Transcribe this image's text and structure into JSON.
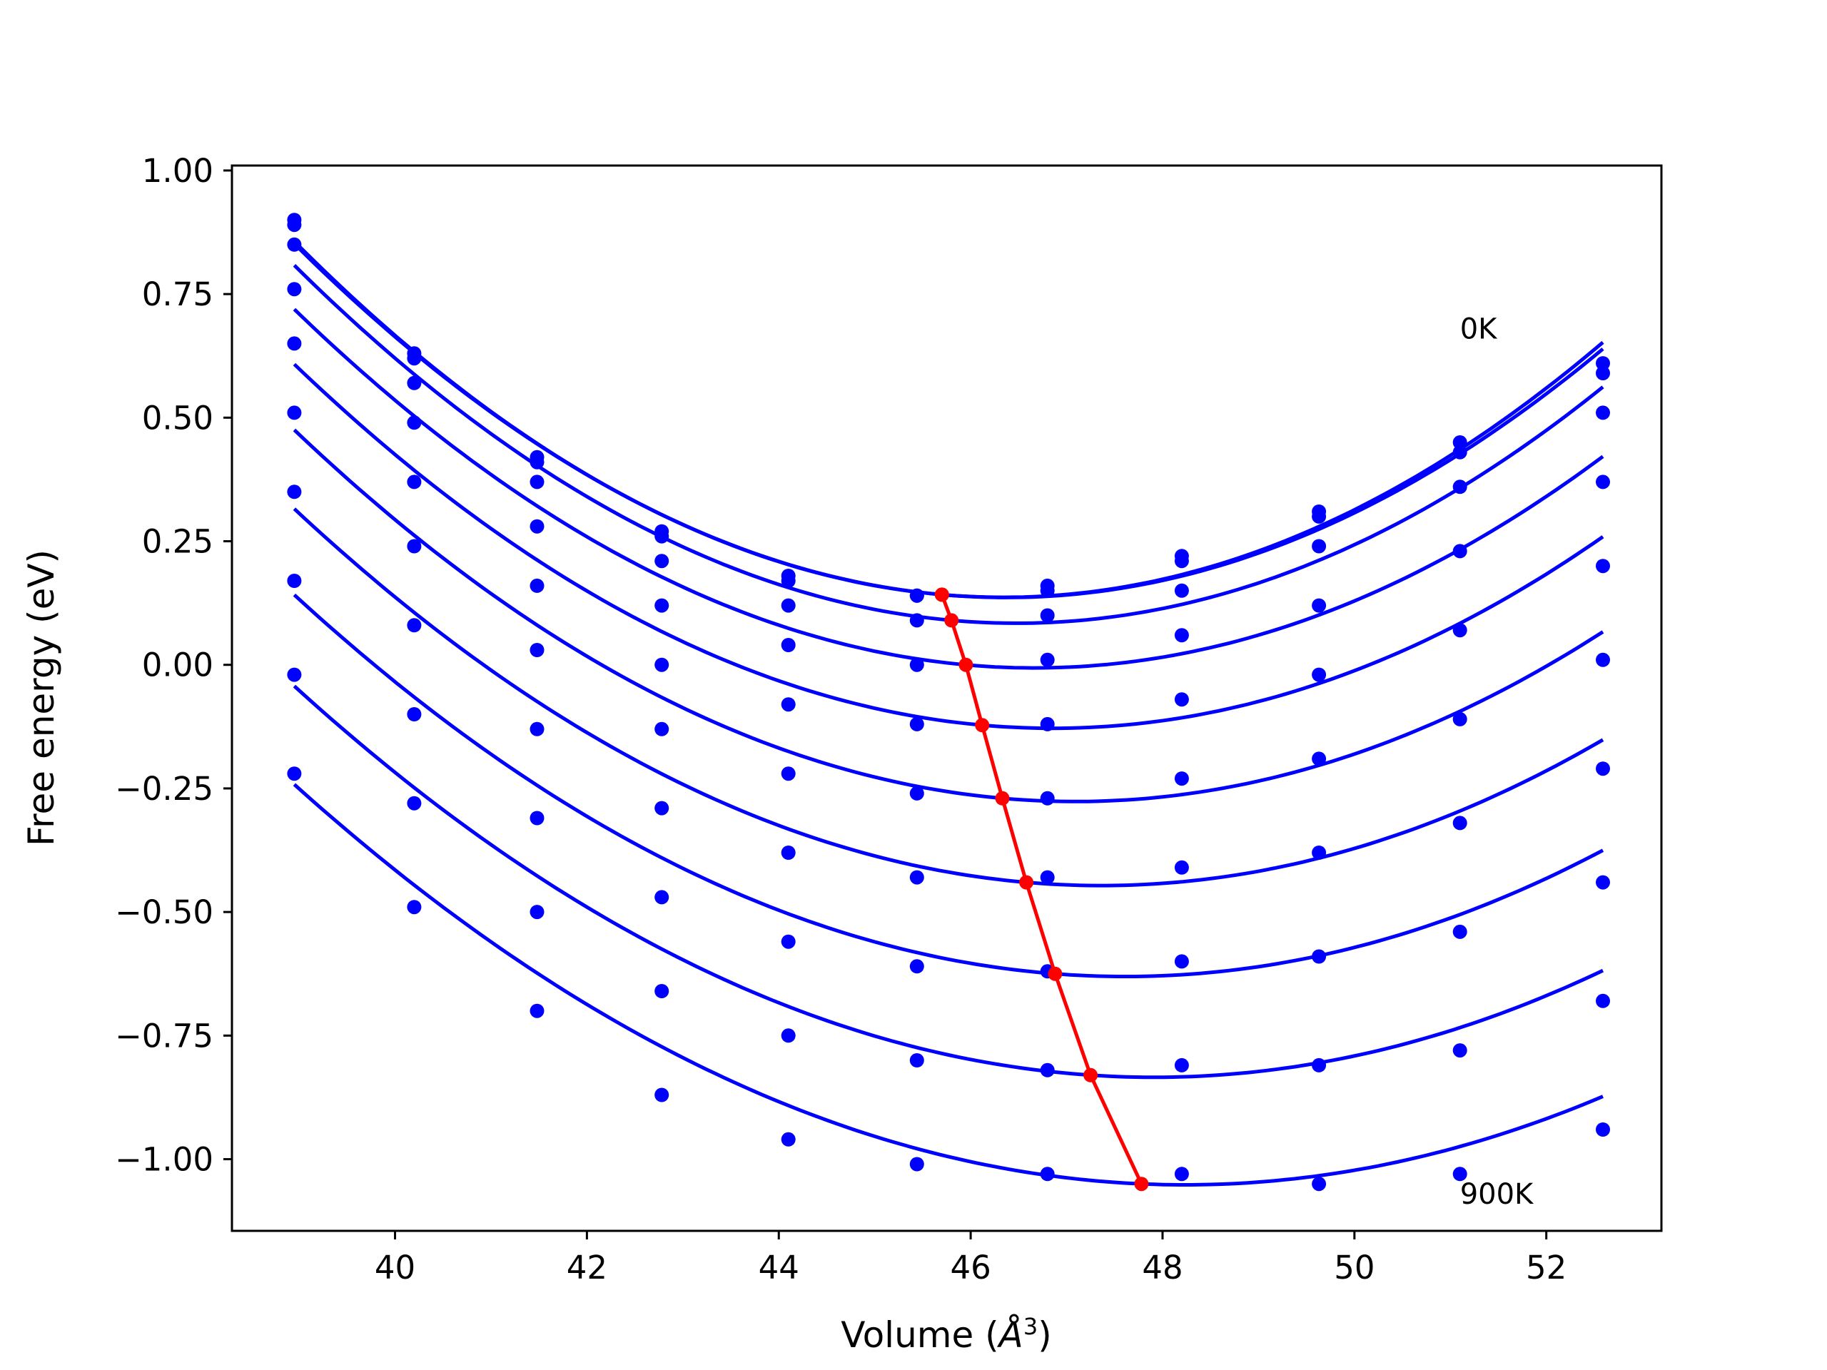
{
  "chart_data": {
    "type": "line",
    "xlabel_text": "Volume (",
    "xlabel_symbol": "Å",
    "xlabel_exp": "3",
    "xlabel_close": ")",
    "ylabel": "Free energy (eV)",
    "xlim": [
      38.3,
      53.2
    ],
    "ylim": [
      -1.145,
      1.01
    ],
    "xticks": [
      40,
      42,
      44,
      46,
      48,
      50,
      52
    ],
    "xtick_labels": [
      "40",
      "42",
      "44",
      "46",
      "48",
      "50",
      "52"
    ],
    "yticks": [
      1.0,
      0.75,
      0.5,
      0.25,
      0.0,
      -0.25,
      -0.5,
      -0.75,
      -1.0
    ],
    "ytick_labels": [
      "1.00",
      "0.75",
      "0.50",
      "0.25",
      "0.00",
      "−0.25",
      "−0.50",
      "−0.75",
      "−1.00"
    ],
    "annotations": [
      {
        "text": "0K",
        "x": 51.1,
        "y": 0.66
      },
      {
        "text": "900K",
        "x": 51.1,
        "y": -1.09
      }
    ],
    "volumes": [
      38.95,
      40.2,
      41.48,
      42.78,
      44.1,
      45.44,
      46.8,
      48.2,
      49.63,
      51.1,
      52.59
    ],
    "series": [
      {
        "points": [
          0.9,
          0.63,
          0.42,
          0.27,
          0.18,
          0.14,
          0.16,
          0.22,
          0.31,
          0.45,
          0.61
        ],
        "min": [
          45.7,
          0.142
        ]
      },
      {
        "points": [
          0.89,
          0.62,
          0.41,
          0.26,
          0.17,
          0.14,
          0.15,
          0.21,
          0.3,
          0.43,
          0.59
        ],
        "min": [
          45.7,
          0.142
        ]
      },
      {
        "points": [
          0.85,
          0.57,
          0.37,
          0.21,
          0.12,
          0.09,
          0.1,
          0.15,
          0.24,
          0.36,
          0.51
        ],
        "min": [
          45.8,
          0.09
        ]
      },
      {
        "points": [
          0.76,
          0.49,
          0.28,
          0.12,
          0.04,
          0.0,
          0.01,
          0.06,
          0.12,
          0.23,
          0.37
        ],
        "min": [
          45.95,
          0.0
        ]
      },
      {
        "points": [
          0.65,
          0.37,
          0.16,
          0.0,
          -0.08,
          -0.12,
          -0.12,
          -0.07,
          -0.02,
          0.07,
          0.2
        ],
        "min": [
          46.12,
          -0.122
        ]
      },
      {
        "points": [
          0.51,
          0.24,
          0.03,
          -0.13,
          -0.22,
          -0.26,
          -0.27,
          -0.23,
          -0.19,
          -0.11,
          0.01
        ],
        "min": [
          46.33,
          -0.27
        ]
      },
      {
        "points": [
          0.35,
          0.08,
          -0.13,
          -0.29,
          -0.38,
          -0.43,
          -0.43,
          -0.41,
          -0.38,
          -0.32,
          -0.21
        ],
        "min": [
          46.58,
          -0.44
        ]
      },
      {
        "points": [
          0.17,
          -0.1,
          -0.31,
          -0.47,
          -0.56,
          -0.61,
          -0.62,
          -0.6,
          -0.59,
          -0.54,
          -0.44
        ],
        "min": [
          46.88,
          -0.625
        ]
      },
      {
        "points": [
          -0.02,
          -0.28,
          -0.5,
          -0.66,
          -0.75,
          -0.8,
          -0.82,
          -0.81,
          -0.81,
          -0.78,
          -0.68
        ],
        "min": [
          47.25,
          -0.83
        ]
      },
      {
        "points": [
          -0.22,
          -0.49,
          -0.7,
          -0.87,
          -0.96,
          -1.01,
          -1.03,
          -1.03,
          -1.05,
          -1.03,
          -0.94
        ],
        "min": [
          47.78,
          -1.05
        ]
      }
    ],
    "colors": {
      "series": "#0000ff",
      "minima": "#ff0000",
      "axes": "#000000"
    }
  }
}
